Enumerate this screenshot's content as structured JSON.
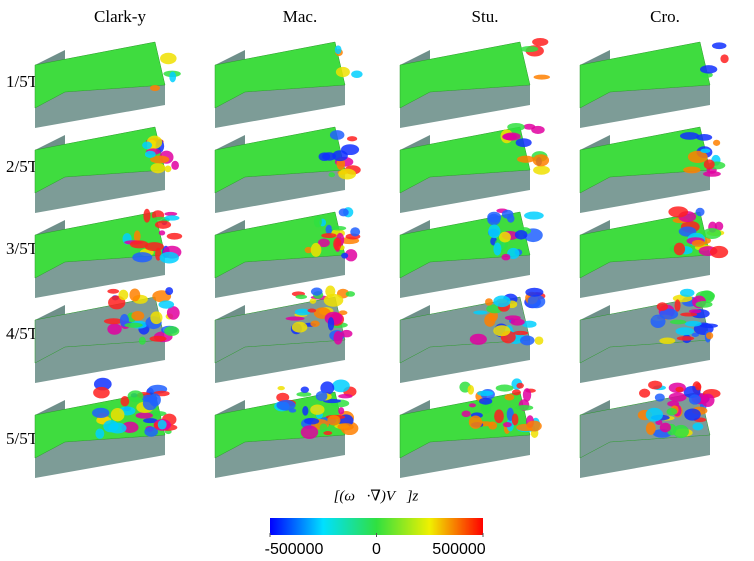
{
  "columns": [
    "Clark-y",
    "Mac.",
    "Stu.",
    "Cro."
  ],
  "rows": [
    "1/5T",
    "2/5T",
    "3/5T",
    "4/5T",
    "5/5T"
  ],
  "colorbar": {
    "label": "[(ω⃗·∇)V⃗]z",
    "range": [
      -500000,
      500000
    ],
    "ticks": [
      -500000,
      0,
      500000
    ]
  }
}
